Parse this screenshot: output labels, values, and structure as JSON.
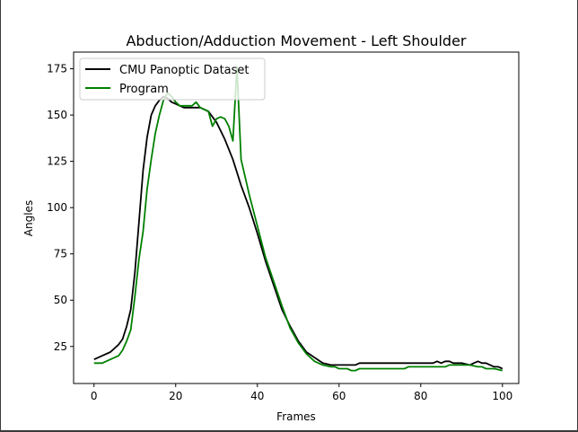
{
  "chart_data": {
    "type": "line",
    "title": "Abduction/Adduction Movement - Left Shoulder",
    "xlabel": "Frames",
    "ylabel": "Angles",
    "xlim": [
      -5,
      104
    ],
    "ylim": [
      5,
      184
    ],
    "xticks": [
      0,
      20,
      40,
      60,
      80,
      100
    ],
    "yticks": [
      25,
      50,
      75,
      100,
      125,
      150,
      175
    ],
    "legend_position": "top-left",
    "grid": false,
    "series": [
      {
        "name": "CMU Panoptic Dataset",
        "color": "#000000",
        "x": [
          0,
          2,
          4,
          6,
          7,
          8,
          9,
          10,
          11,
          12,
          13,
          14,
          15,
          16,
          17,
          18,
          19,
          20,
          21,
          22,
          24,
          26,
          28,
          30,
          32,
          34,
          36,
          38,
          40,
          42,
          44,
          46,
          48,
          50,
          52,
          54,
          56,
          58,
          60,
          62,
          64,
          65,
          66,
          68,
          70,
          72,
          74,
          76,
          78,
          80,
          82,
          83,
          84,
          85,
          86,
          87,
          88,
          90,
          92,
          93,
          94,
          95,
          96,
          97,
          98,
          99,
          100
        ],
        "y": [
          18,
          20,
          22,
          26,
          29,
          36,
          45,
          65,
          92,
          120,
          138,
          150,
          155,
          158,
          160,
          159,
          157,
          156,
          155,
          154,
          154,
          154,
          152,
          146,
          137,
          126,
          112,
          100,
          86,
          71,
          58,
          45,
          36,
          28,
          22,
          19,
          16,
          15,
          15,
          15,
          15,
          16,
          16,
          16,
          16,
          16,
          16,
          16,
          16,
          16,
          16,
          16,
          17,
          16,
          17,
          17,
          16,
          16,
          15,
          16,
          17,
          16,
          16,
          15,
          14,
          14,
          13
        ]
      },
      {
        "name": "Program",
        "color": "#008000",
        "x": [
          0,
          2,
          4,
          6,
          7,
          8,
          9,
          10,
          11,
          12,
          13,
          14,
          15,
          16,
          17,
          18,
          19,
          20,
          21,
          22,
          24,
          25,
          26,
          27,
          28,
          29,
          30,
          31,
          32,
          33,
          34,
          35,
          36,
          38,
          40,
          42,
          44,
          46,
          48,
          50,
          52,
          54,
          56,
          58,
          59,
          60,
          62,
          63,
          64,
          65,
          66,
          68,
          70,
          72,
          74,
          76,
          77,
          78,
          80,
          82,
          84,
          86,
          87,
          88,
          90,
          92,
          94,
          95,
          96,
          98,
          100
        ],
        "y": [
          16,
          16,
          18,
          20,
          23,
          28,
          34,
          52,
          72,
          87,
          110,
          126,
          140,
          150,
          158,
          162,
          160,
          157,
          155,
          155,
          155,
          157,
          154,
          153,
          152,
          144,
          148,
          149,
          148,
          144,
          136,
          176,
          126,
          107,
          90,
          73,
          60,
          47,
          35,
          27,
          21,
          17,
          15,
          14,
          14,
          13,
          13,
          12,
          12,
          13,
          13,
          13,
          13,
          13,
          13,
          13,
          14,
          14,
          14,
          14,
          14,
          14,
          15,
          15,
          15,
          15,
          14,
          14,
          13,
          13,
          12
        ]
      }
    ]
  }
}
